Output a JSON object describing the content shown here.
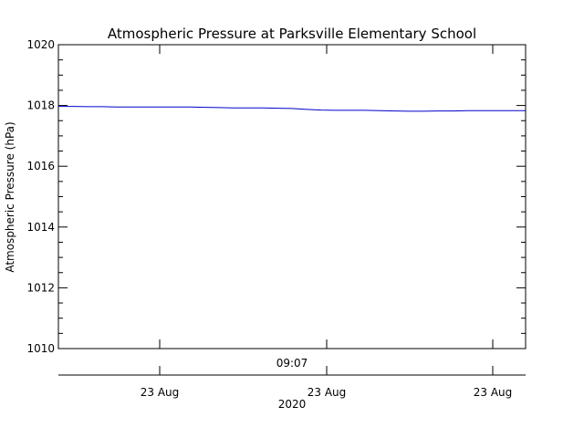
{
  "chart_data": {
    "type": "line",
    "title": "Atmospheric Pressure at Parksville Elementary School",
    "xlabel": "",
    "ylabel": "Atmospheric Pressure (hPa)",
    "ylim": [
      1010,
      1020
    ],
    "yticks": [
      1010,
      1012,
      1014,
      1016,
      1018,
      1020
    ],
    "x_time_label": "09:07",
    "xticks": [
      "23 Aug",
      "23 Aug",
      "23 Aug"
    ],
    "x_year_label": "2020",
    "grid": false,
    "series": [
      {
        "color": "#0000cc",
        "values": [
          1017.97,
          1017.97,
          1017.96,
          1017.96,
          1017.95,
          1017.95,
          1017.95,
          1017.95,
          1017.95,
          1017.95,
          1017.94,
          1017.93,
          1017.92,
          1017.92,
          1017.92,
          1017.91,
          1017.9,
          1017.87,
          1017.85,
          1017.84,
          1017.84,
          1017.84,
          1017.83,
          1017.82,
          1017.81,
          1017.81,
          1017.82,
          1017.82,
          1017.83,
          1017.83,
          1017.83,
          1017.83,
          1017.83
        ]
      }
    ]
  }
}
